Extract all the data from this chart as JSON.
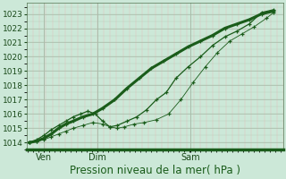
{
  "background_color": "#cce8d8",
  "plot_bg_color": "#cce8d8",
  "grid_major_color": "#aabcaa",
  "grid_minor_v_color": "#e8b8b8",
  "grid_minor_h_color": "#b8ccb8",
  "line_color": "#1a5c1a",
  "ylim": [
    1013.5,
    1023.8
  ],
  "yticks": [
    1014,
    1015,
    1016,
    1017,
    1018,
    1019,
    1020,
    1021,
    1022,
    1023
  ],
  "xlabel": "Pression niveau de la mer( hPa )",
  "xlabel_fontsize": 8.5,
  "xtick_labels": [
    "Ven",
    "Dim",
    "Sam"
  ],
  "xtick_positions": [
    0.06,
    0.28,
    0.66
  ],
  "vline_positions": [
    0.06,
    0.28,
    0.66
  ],
  "xlim": [
    -0.01,
    1.04
  ],
  "series1_x": [
    0.0,
    0.03,
    0.06,
    0.09,
    0.12,
    0.15,
    0.18,
    0.22,
    0.26,
    0.3,
    0.35,
    0.4,
    0.45,
    0.5,
    0.55,
    0.6,
    0.65,
    0.7,
    0.75,
    0.8,
    0.85,
    0.9,
    0.95,
    1.0
  ],
  "series1_y": [
    1014.0,
    1014.1,
    1014.3,
    1014.6,
    1015.0,
    1015.3,
    1015.5,
    1015.8,
    1016.0,
    1016.4,
    1017.0,
    1017.8,
    1018.5,
    1019.2,
    1019.7,
    1020.2,
    1020.7,
    1021.1,
    1021.5,
    1022.0,
    1022.3,
    1022.6,
    1023.0,
    1023.2
  ],
  "series2_x": [
    0.0,
    0.03,
    0.06,
    0.09,
    0.12,
    0.15,
    0.18,
    0.21,
    0.24,
    0.27,
    0.3,
    0.33,
    0.36,
    0.4,
    0.44,
    0.48,
    0.52,
    0.56,
    0.6,
    0.65,
    0.7,
    0.75,
    0.8,
    0.85,
    0.9,
    0.95,
    1.0
  ],
  "series2_y": [
    1014.0,
    1014.2,
    1014.5,
    1014.9,
    1015.2,
    1015.5,
    1015.8,
    1016.0,
    1016.2,
    1016.0,
    1015.5,
    1015.1,
    1015.2,
    1015.5,
    1015.8,
    1016.3,
    1017.0,
    1017.5,
    1018.5,
    1019.3,
    1020.0,
    1020.8,
    1021.4,
    1021.8,
    1022.3,
    1023.1,
    1023.3
  ],
  "series3_x": [
    0.0,
    0.03,
    0.06,
    0.09,
    0.12,
    0.15,
    0.18,
    0.22,
    0.26,
    0.3,
    0.33,
    0.36,
    0.39,
    0.43,
    0.47,
    0.52,
    0.57,
    0.62,
    0.67,
    0.72,
    0.77,
    0.82,
    0.87,
    0.92,
    0.97,
    1.0
  ],
  "series3_y": [
    1014.0,
    1014.1,
    1014.2,
    1014.4,
    1014.6,
    1014.8,
    1015.0,
    1015.2,
    1015.4,
    1015.3,
    1015.1,
    1015.0,
    1015.1,
    1015.3,
    1015.4,
    1015.6,
    1016.0,
    1017.0,
    1018.2,
    1019.3,
    1020.3,
    1021.1,
    1021.6,
    1022.1,
    1022.7,
    1023.1
  ]
}
